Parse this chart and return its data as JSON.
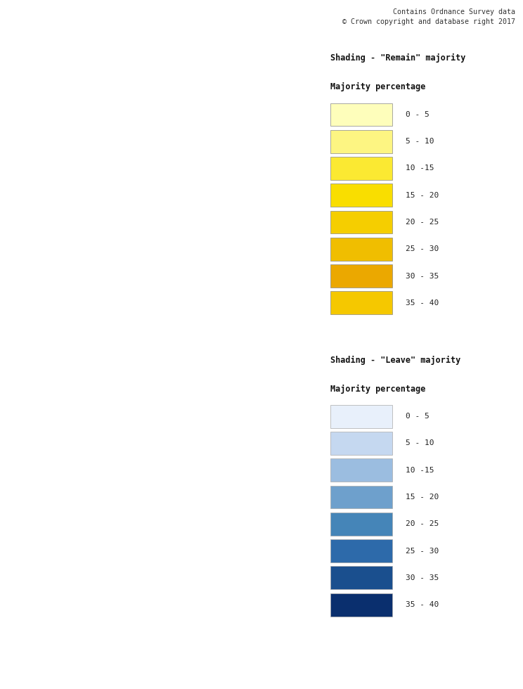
{
  "title_text": "Contains Ordnance Survey data\n© Crown copyright and database right 2017",
  "remain_label": "Shading - \"Remain\" majority",
  "remain_sub": "Majority percentage",
  "leave_label": "Shading - \"Leave\" majority",
  "leave_sub": "Majority percentage",
  "remain_colors": [
    "#fefebb",
    "#fdf582",
    "#fbe932",
    "#f9de00",
    "#f5ce00",
    "#f0be00",
    "#eba800",
    "#f5c800"
  ],
  "leave_colors": [
    "#e8f0fb",
    "#c5d8f0",
    "#9bbde0",
    "#6ea0cc",
    "#4585b8",
    "#2d6aaa",
    "#1a4f8e",
    "#0a2f6e"
  ],
  "legend_labels": [
    "0 - 5",
    "5 - 10",
    "10 -15",
    "15 - 20",
    "20 - 25",
    "25 - 30",
    "30 - 35",
    "35 - 40"
  ],
  "fig_width": 7.44,
  "fig_height": 9.8,
  "background": "#ffffff",
  "font_family": "monospace",
  "copyright": "Contains Ordnance Survey data\n© Crown copyright and database right 2017"
}
